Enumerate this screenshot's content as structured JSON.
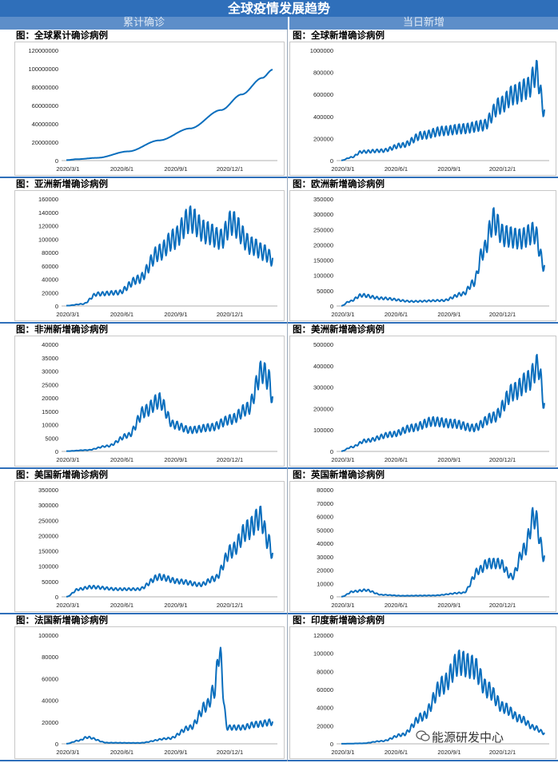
{
  "header": {
    "title": "全球疫情发展趋势",
    "left_section": "累计确诊",
    "right_section": "当日新增"
  },
  "watermark": "能源研发中心",
  "colors": {
    "line": "#0a6ebd",
    "title_bg": "#2f6fba",
    "sub_bg": "#5d8ec9"
  },
  "chart_data": [
    {
      "id": "global-cum",
      "type": "line",
      "title": "图：全球累计确诊病例",
      "ylim": [
        0,
        120000000
      ],
      "yticks": [
        0,
        20000000,
        40000000,
        60000000,
        80000000,
        100000000,
        120000000
      ],
      "xticks": [
        "2020/3/1",
        "2020/6/1",
        "2020/9/1",
        "2020/12/1"
      ],
      "n": 330,
      "x": [
        0,
        0.05,
        0.15,
        0.3,
        0.45,
        0.6,
        0.75,
        0.85,
        0.95,
        1.0
      ],
      "values": [
        500000,
        1500000,
        3000000,
        10000000,
        22000000,
        35000000,
        55000000,
        72000000,
        90000000,
        99000000
      ]
    },
    {
      "id": "global-new",
      "type": "line",
      "title": "图：全球新增确诊病例",
      "ylim": [
        0,
        1000000
      ],
      "yticks": [
        0,
        200000,
        400000,
        600000,
        800000,
        1000000
      ],
      "xticks": [
        "2020/3/1",
        "2020/6/1",
        "2020/9/1",
        "2020/12/1"
      ],
      "n": 330,
      "x": [
        0,
        0.05,
        0.1,
        0.2,
        0.3,
        0.4,
        0.5,
        0.6,
        0.7,
        0.78,
        0.85,
        0.92,
        0.96,
        1.0
      ],
      "values": [
        2000,
        30000,
        80000,
        90000,
        140000,
        230000,
        270000,
        290000,
        320000,
        500000,
        600000,
        660000,
        800000,
        450000
      ]
    },
    {
      "id": "asia-new",
      "type": "line",
      "title": "图：亚洲新增确诊病例",
      "ylim": [
        0,
        160000
      ],
      "yticks": [
        0,
        20000,
        40000,
        60000,
        80000,
        100000,
        120000,
        140000,
        160000
      ],
      "xticks": [
        "2020/3/1",
        "2020/6/1",
        "2020/9/1",
        "2020/12/1"
      ],
      "n": 330,
      "x": [
        0,
        0.08,
        0.15,
        0.25,
        0.35,
        0.45,
        0.52,
        0.6,
        0.68,
        0.75,
        0.8,
        0.9,
        0.96,
        1.0
      ],
      "values": [
        500,
        3000,
        18000,
        20000,
        40000,
        80000,
        100000,
        130000,
        110000,
        100000,
        125000,
        90000,
        80000,
        70000
      ]
    },
    {
      "id": "europe-new",
      "type": "line",
      "title": "图：欧洲新增确诊病例",
      "ylim": [
        0,
        350000
      ],
      "yticks": [
        0,
        50000,
        100000,
        150000,
        200000,
        250000,
        300000,
        350000
      ],
      "xticks": [
        "2020/3/1",
        "2020/6/1",
        "2020/9/1",
        "2020/12/1"
      ],
      "n": 330,
      "x": [
        0,
        0.04,
        0.1,
        0.2,
        0.35,
        0.5,
        0.6,
        0.65,
        0.7,
        0.75,
        0.8,
        0.88,
        0.95,
        1.0
      ],
      "values": [
        500,
        15000,
        35000,
        25000,
        15000,
        18000,
        40000,
        75000,
        180000,
        280000,
        230000,
        220000,
        240000,
        130000
      ]
    },
    {
      "id": "africa-new",
      "type": "line",
      "title": "图：非洲新增确诊病例",
      "ylim": [
        0,
        40000
      ],
      "yticks": [
        0,
        5000,
        10000,
        15000,
        20000,
        25000,
        30000,
        35000,
        40000
      ],
      "xticks": [
        "2020/3/1",
        "2020/6/1",
        "2020/9/1",
        "2020/12/1"
      ],
      "n": 330,
      "x": [
        0,
        0.1,
        0.2,
        0.3,
        0.38,
        0.45,
        0.52,
        0.6,
        0.7,
        0.8,
        0.88,
        0.95,
        0.98,
        1.0
      ],
      "values": [
        100,
        500,
        2000,
        6000,
        15000,
        19000,
        10000,
        8000,
        9000,
        12000,
        16000,
        30000,
        27000,
        20000
      ]
    },
    {
      "id": "america-new",
      "type": "line",
      "title": "图：美洲新增确诊病例",
      "ylim": [
        0,
        500000
      ],
      "yticks": [
        0,
        100000,
        200000,
        300000,
        400000,
        500000
      ],
      "xticks": [
        "2020/3/1",
        "2020/6/1",
        "2020/9/1",
        "2020/12/1"
      ],
      "n": 330,
      "x": [
        0,
        0.05,
        0.12,
        0.25,
        0.35,
        0.45,
        0.55,
        0.65,
        0.75,
        0.85,
        0.92,
        0.97,
        1.0
      ],
      "values": [
        1000,
        20000,
        50000,
        80000,
        110000,
        140000,
        130000,
        110000,
        160000,
        280000,
        330000,
        400000,
        220000
      ]
    },
    {
      "id": "usa-new",
      "type": "line",
      "title": "图：美国新增确诊病例",
      "ylim": [
        0,
        350000
      ],
      "yticks": [
        0,
        50000,
        100000,
        150000,
        200000,
        250000,
        300000,
        350000
      ],
      "xticks": [
        "2020/3/1",
        "2020/6/1",
        "2020/9/1",
        "2020/12/1"
      ],
      "n": 330,
      "x": [
        0,
        0.06,
        0.12,
        0.25,
        0.35,
        0.45,
        0.55,
        0.65,
        0.72,
        0.8,
        0.88,
        0.94,
        0.98,
        1.0
      ],
      "values": [
        200,
        25000,
        32000,
        25000,
        25000,
        65000,
        50000,
        40000,
        60000,
        150000,
        220000,
        260000,
        180000,
        140000
      ]
    },
    {
      "id": "uk-new",
      "type": "line",
      "title": "图：英国新增确诊病例",
      "ylim": [
        0,
        80000
      ],
      "yticks": [
        0,
        10000,
        20000,
        30000,
        40000,
        50000,
        60000,
        70000,
        80000
      ],
      "xticks": [
        "2020/3/1",
        "2020/6/1",
        "2020/9/1",
        "2020/12/1"
      ],
      "n": 330,
      "x": [
        0,
        0.06,
        0.12,
        0.2,
        0.3,
        0.45,
        0.6,
        0.68,
        0.72,
        0.78,
        0.84,
        0.9,
        0.95,
        1.0
      ],
      "values": [
        100,
        4000,
        5000,
        1500,
        800,
        1000,
        3000,
        20000,
        25000,
        25000,
        15000,
        35000,
        60000,
        30000
      ]
    },
    {
      "id": "france-new",
      "type": "line",
      "title": "图：法国新增确诊病例",
      "ylim": [
        0,
        100000
      ],
      "yticks": [
        0,
        20000,
        40000,
        60000,
        80000,
        100000
      ],
      "xticks": [
        "2020/3/1",
        "2020/6/1",
        "2020/9/1",
        "2020/12/1"
      ],
      "n": 330,
      "x": [
        0,
        0.06,
        0.1,
        0.2,
        0.35,
        0.5,
        0.6,
        0.68,
        0.72,
        0.74,
        0.78,
        0.85,
        0.92,
        1.0
      ],
      "values": [
        100,
        3000,
        6000,
        1000,
        800,
        5000,
        15000,
        35000,
        50000,
        85000,
        15000,
        15000,
        18000,
        20000
      ]
    },
    {
      "id": "india-new",
      "type": "line",
      "title": "图：印度新增确诊病例",
      "ylim": [
        0,
        120000
      ],
      "yticks": [
        0,
        20000,
        40000,
        60000,
        80000,
        100000,
        120000
      ],
      "xticks": [
        "2020/3/1",
        "2020/6/1",
        "2020/9/1",
        "2020/12/1"
      ],
      "n": 330,
      "x": [
        0,
        0.1,
        0.2,
        0.3,
        0.4,
        0.5,
        0.58,
        0.65,
        0.72,
        0.8,
        0.88,
        0.95,
        1.0
      ],
      "values": [
        50,
        500,
        3000,
        10000,
        30000,
        65000,
        90000,
        85000,
        60000,
        40000,
        28000,
        18000,
        12000
      ]
    }
  ]
}
